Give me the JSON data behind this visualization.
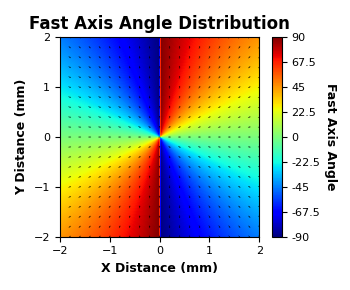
{
  "title": "Fast Axis Angle Distribution",
  "xlabel": "X Distance (mm)",
  "ylabel": "Y Distance (mm)",
  "colorbar_label": "Fast Axis Angle",
  "colorbar_ticks": [
    90.0,
    67.5,
    45.0,
    22.5,
    0.0,
    -22.5,
    -45.0,
    -67.5,
    -90.0
  ],
  "xlim": [
    -2,
    2
  ],
  "ylim": [
    -2,
    2
  ],
  "vmin": -90,
  "vmax": 90,
  "n_grid": 21,
  "cmap": "jet",
  "title_fontsize": 12,
  "label_fontsize": 9,
  "tick_fontsize": 8
}
